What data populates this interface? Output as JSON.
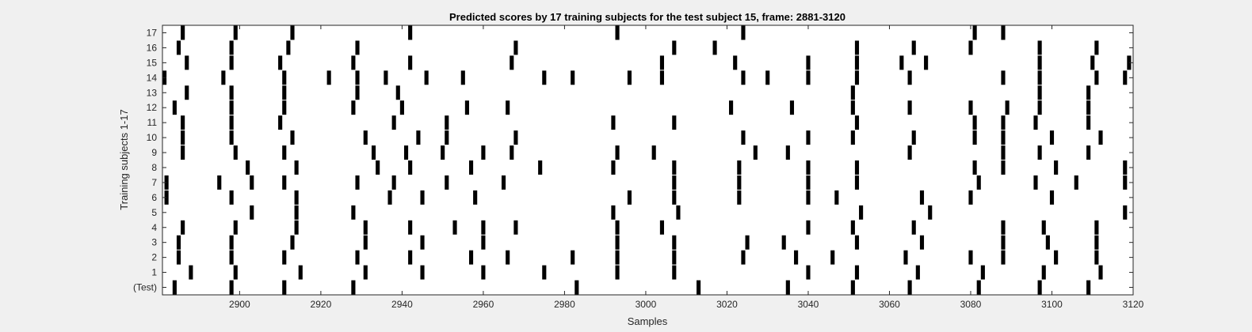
{
  "chart_data": {
    "type": "raster",
    "title": "Predicted scores by 17 training subjects for the test subject 15, frame: 2881-3120",
    "xlabel": "Samples",
    "ylabel": "Training subjects 1-17",
    "xlim": [
      2881,
      3120
    ],
    "xticks": [
      2900,
      2920,
      2940,
      2960,
      2980,
      3000,
      3020,
      3040,
      3060,
      3080,
      3100,
      3120
    ],
    "rows": [
      {
        "label": "(Test)",
        "events": [
          2884,
          2898,
          2911,
          2928,
          2983,
          3013,
          3035,
          3051,
          3065,
          3082,
          3097,
          3109
        ]
      },
      {
        "label": "1",
        "events": [
          2888,
          2899,
          2915,
          2931,
          2945,
          2960,
          2975,
          2993,
          3007,
          3040,
          3052,
          3067,
          3083,
          3098,
          3112
        ]
      },
      {
        "label": "2",
        "events": [
          2885,
          2898,
          2911,
          2929,
          2942,
          2957,
          2966,
          2982,
          2993,
          3007,
          3024,
          3037,
          3046,
          3064,
          3080,
          3088,
          3101,
          3111
        ]
      },
      {
        "label": "3",
        "events": [
          2885,
          2898,
          2913,
          2931,
          2945,
          2960,
          2993,
          3007,
          3025,
          3034,
          3052,
          3068,
          3088,
          3099,
          3111
        ]
      },
      {
        "label": "4",
        "events": [
          2886,
          2899,
          2914,
          2931,
          2942,
          2953,
          2960,
          2968,
          2993,
          3004,
          3040,
          3051,
          3066,
          3088,
          3098,
          3111
        ]
      },
      {
        "label": "5",
        "events": [
          2903,
          2914,
          2928,
          2992,
          3008,
          3053,
          3070,
          3118
        ]
      },
      {
        "label": "6",
        "events": [
          2882,
          2898,
          2914,
          2937,
          2945,
          2958,
          2996,
          3007,
          3023,
          3040,
          3047,
          3068,
          3080,
          3100
        ]
      },
      {
        "label": "7",
        "events": [
          2882,
          2895,
          2903,
          2911,
          2929,
          2938,
          2951,
          2965,
          3007,
          3023,
          3040,
          3052,
          3082,
          3096,
          3106,
          3118
        ]
      },
      {
        "label": "8",
        "events": [
          2902,
          2914,
          2934,
          2942,
          2957,
          2974,
          2992,
          3007,
          3023,
          3040,
          3052,
          3081,
          3088,
          3101,
          3118
        ]
      },
      {
        "label": "9",
        "events": [
          2886,
          2899,
          2911,
          2933,
          2941,
          2950,
          2960,
          2967,
          2993,
          3002,
          3027,
          3035,
          3065,
          3088,
          3097,
          3109
        ]
      },
      {
        "label": "10",
        "events": [
          2886,
          2898,
          2913,
          2931,
          2944,
          2951,
          2968,
          3024,
          3040,
          3051,
          3066,
          3081,
          3088,
          3100,
          3112
        ]
      },
      {
        "label": "11",
        "events": [
          2886,
          2898,
          2910,
          2938,
          2951,
          2992,
          3007,
          3052,
          3081,
          3088,
          3096,
          3109
        ]
      },
      {
        "label": "12",
        "events": [
          2884,
          2898,
          2911,
          2928,
          2940,
          2956,
          2966,
          3021,
          3036,
          3051,
          3065,
          3080,
          3089,
          3097,
          3109
        ]
      },
      {
        "label": "13",
        "events": [
          2887,
          2898,
          2911,
          2929,
          2939,
          3051,
          3097,
          3109
        ]
      },
      {
        "label": "14",
        "events": [
          2881,
          2896,
          2911,
          2922,
          2929,
          2936,
          2946,
          2955,
          2975,
          2982,
          2996,
          3004,
          3024,
          3030,
          3040,
          3052,
          3065,
          3088,
          3097,
          3111,
          3118
        ]
      },
      {
        "label": "15",
        "events": [
          2887,
          2898,
          2910,
          2928,
          2942,
          2967,
          3004,
          3022,
          3040,
          3052,
          3063,
          3069,
          3097,
          3110,
          3119
        ]
      },
      {
        "label": "16",
        "events": [
          2885,
          2898,
          2912,
          2929,
          2968,
          3007,
          3017,
          3052,
          3066,
          3080,
          3097,
          3111
        ]
      },
      {
        "label": "17",
        "events": [
          2886,
          2899,
          2913,
          2942,
          2993,
          3024,
          3081,
          3088
        ]
      }
    ]
  }
}
